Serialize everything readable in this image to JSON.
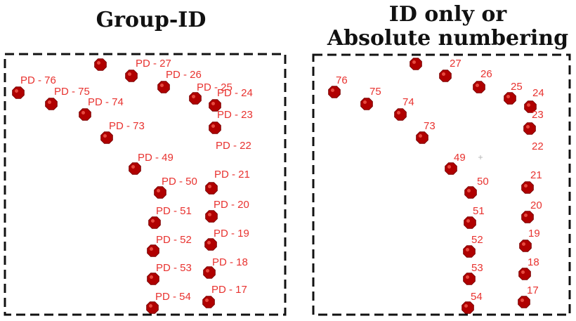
{
  "colors": {
    "dot_fill": "#b00000",
    "dot_stroke": "#7a0000",
    "label": "#e8322f",
    "border": "#111111",
    "title": "#111111"
  },
  "left_panel": {
    "title": "Group-ID",
    "points": [
      {
        "label": "PD - 27"
      },
      {
        "label": "PD - 26"
      },
      {
        "label": "PD - 25"
      },
      {
        "label": "PD - 24"
      },
      {
        "label": "PD - 76"
      },
      {
        "label": "PD - 75"
      },
      {
        "label": "PD - 74"
      },
      {
        "label": "PD - 73"
      },
      {
        "label": "PD - 23"
      },
      {
        "label": "PD - 22"
      },
      {
        "label": "PD - 49"
      },
      {
        "label": "PD - 21"
      },
      {
        "label": "PD - 50"
      },
      {
        "label": "PD - 20"
      },
      {
        "label": "PD - 51"
      },
      {
        "label": "PD - 19"
      },
      {
        "label": "PD - 52"
      },
      {
        "label": "PD - 18"
      },
      {
        "label": "PD - 53"
      },
      {
        "label": "PD - 17"
      },
      {
        "label": "PD - 54"
      }
    ]
  },
  "right_panel": {
    "title_line1": "ID only or",
    "title_line2": "Absolute numbering",
    "points": [
      {
        "label": "27"
      },
      {
        "label": "26"
      },
      {
        "label": "25"
      },
      {
        "label": "24"
      },
      {
        "label": "76"
      },
      {
        "label": "75"
      },
      {
        "label": "74"
      },
      {
        "label": "73"
      },
      {
        "label": "23"
      },
      {
        "label": "22"
      },
      {
        "label": "49"
      },
      {
        "label": "21"
      },
      {
        "label": "50"
      },
      {
        "label": "20"
      },
      {
        "label": "51"
      },
      {
        "label": "19"
      },
      {
        "label": "52"
      },
      {
        "label": "18"
      },
      {
        "label": "53"
      },
      {
        "label": "17"
      },
      {
        "label": "54"
      }
    ]
  }
}
